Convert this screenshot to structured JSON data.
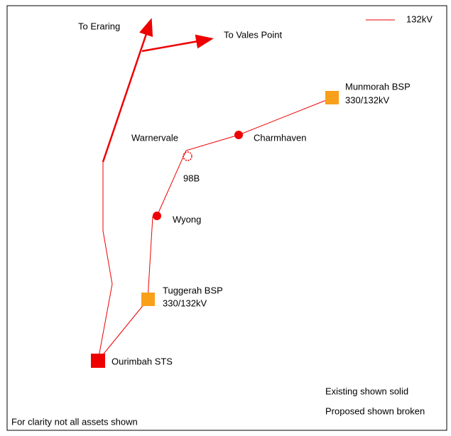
{
  "legend": {
    "label": "132kV"
  },
  "destinations": [
    {
      "label": "To Eraring"
    },
    {
      "label": "To Vales Point"
    }
  ],
  "nodes": [
    {
      "label": "Munmorah BSP",
      "sublabel": "330/132kV"
    },
    {
      "label": "Charmhaven"
    },
    {
      "label": "Warnervale"
    },
    {
      "label": "98B"
    },
    {
      "label": "Wyong"
    },
    {
      "label": "Tuggerah BSP",
      "sublabel": "330/132kV"
    },
    {
      "label": "Ourimbah STS"
    }
  ],
  "notes": [
    "Existing shown solid",
    "Proposed shown broken",
    "For clarity not all assets shown"
  ]
}
